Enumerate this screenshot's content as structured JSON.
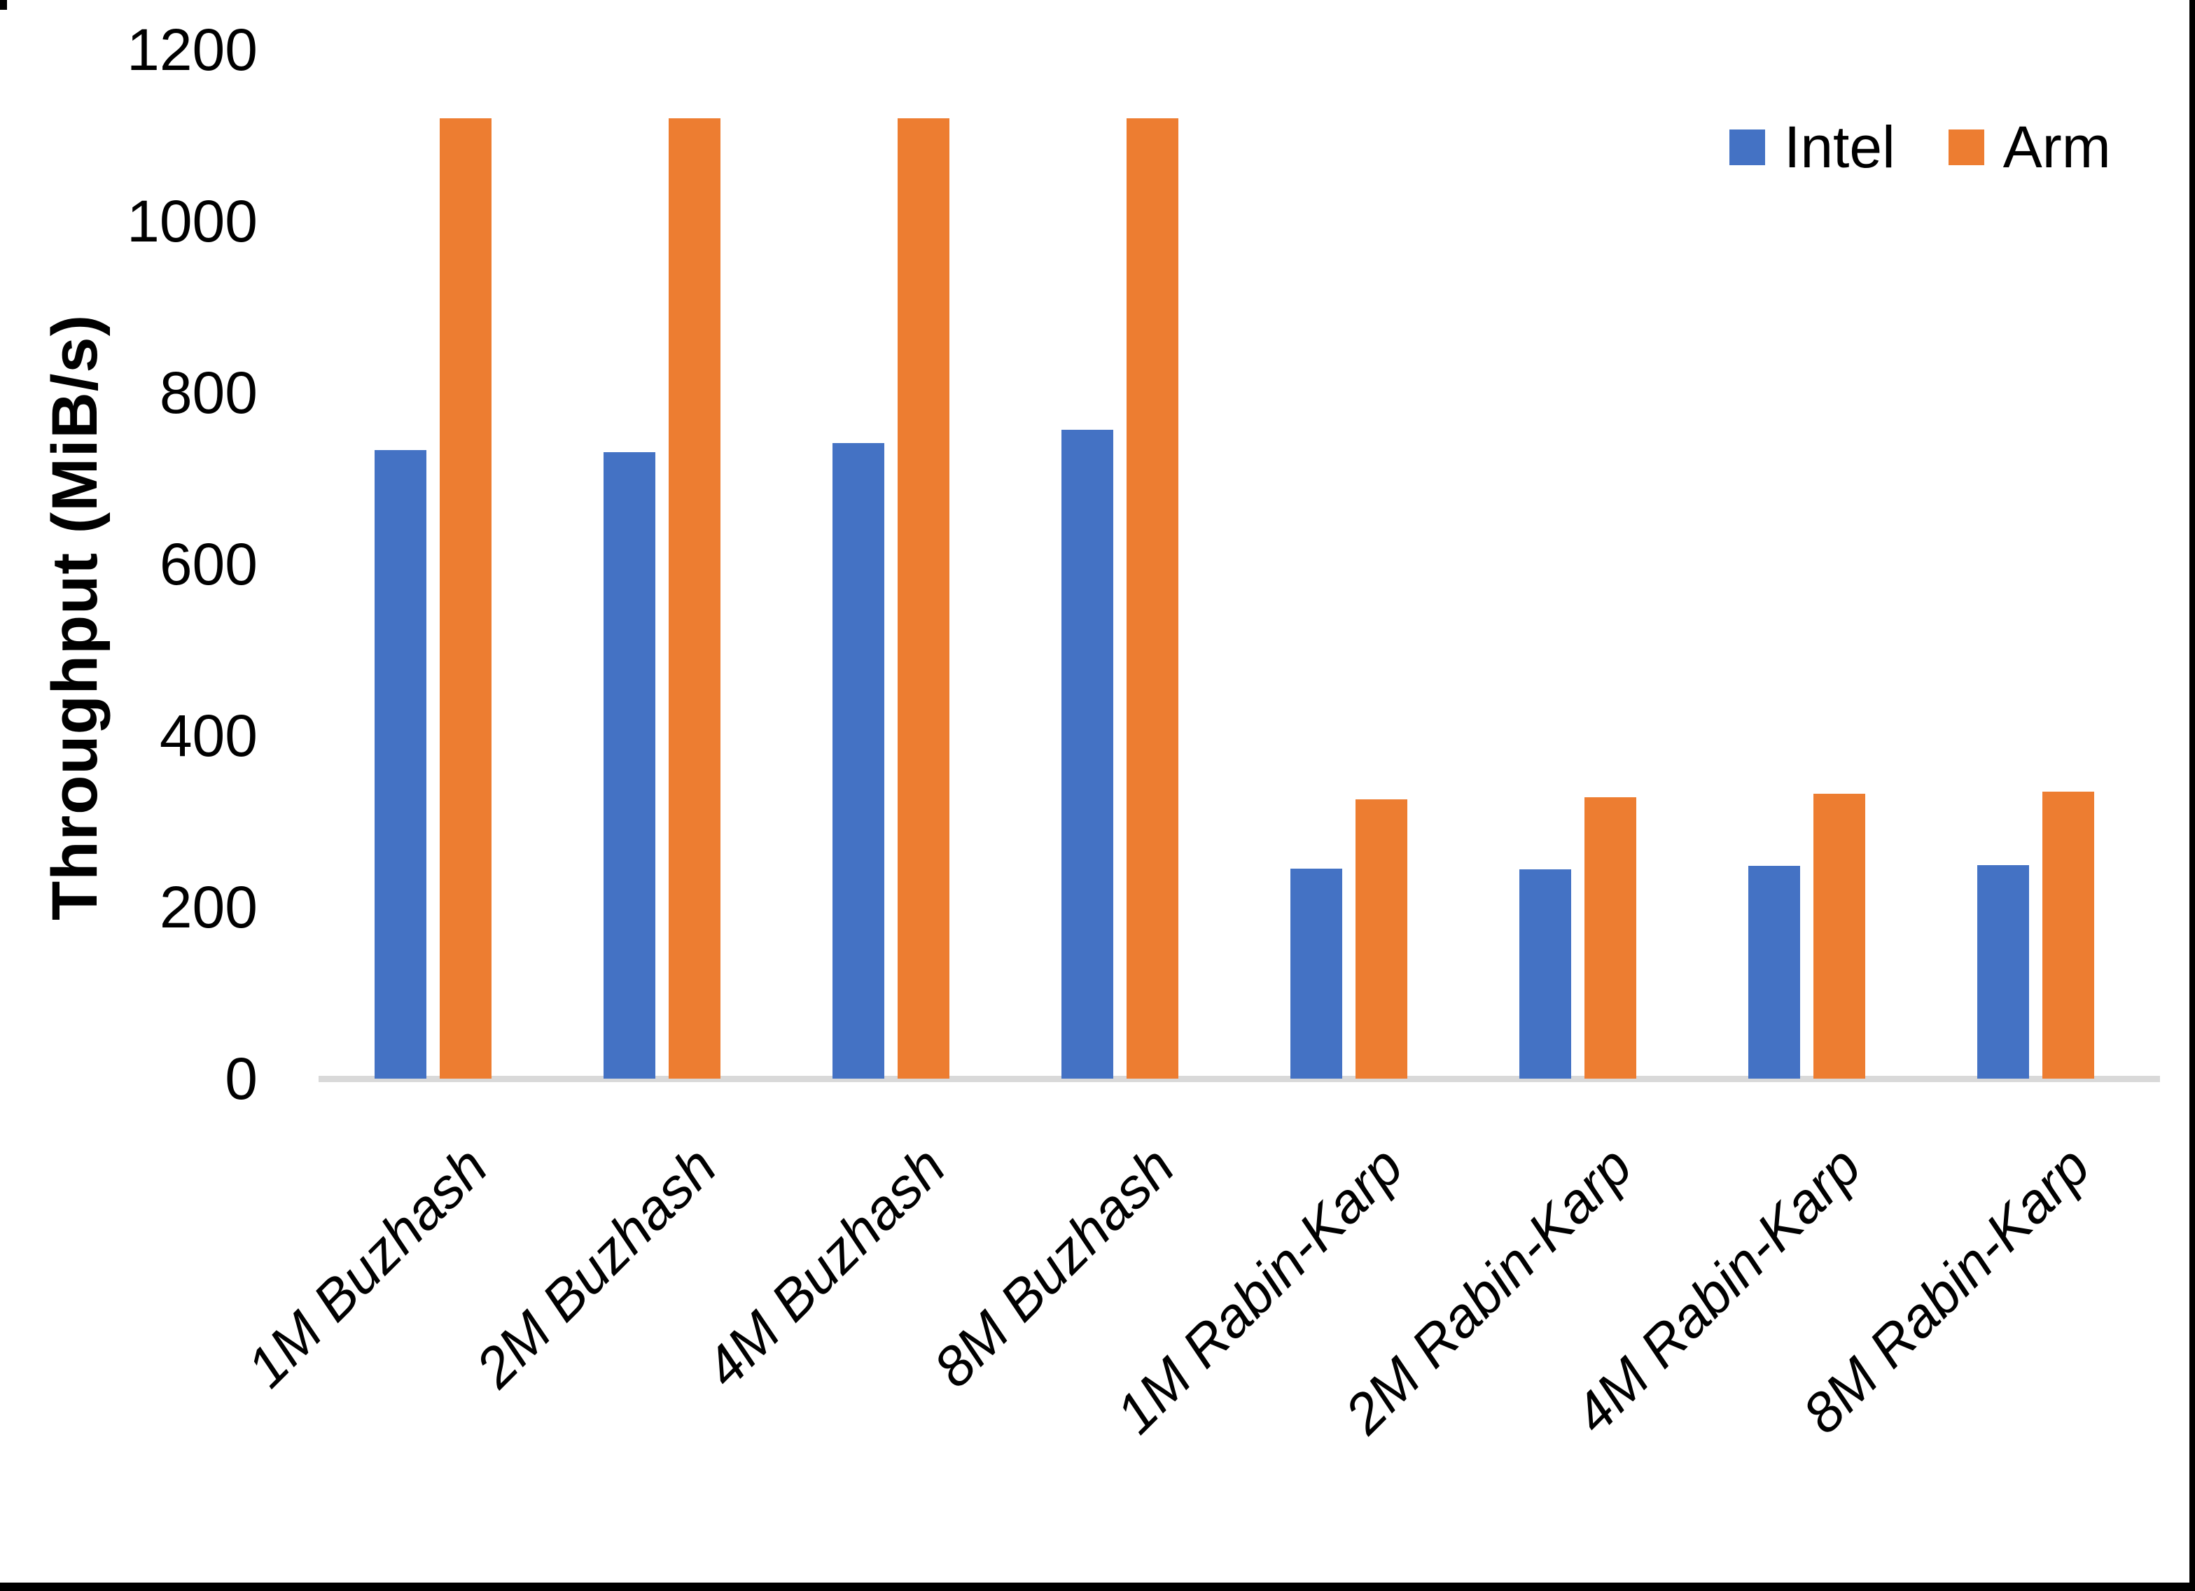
{
  "chart_data": {
    "type": "bar",
    "title": "",
    "xlabel": "",
    "ylabel": "Throughput (MiB/s)",
    "categories": [
      "1M Buzhash",
      "2M Buzhash",
      "4M Buzhash",
      "8M Buzhash",
      "1M Rabin-Karp",
      "2M Rabin-Karp",
      "4M Rabin-Karp",
      "8M Rabin-Karp"
    ],
    "series": [
      {
        "name": "Intel",
        "color": "#4472C4",
        "values": [
          733,
          731,
          741,
          757,
          245,
          244,
          248,
          249
        ]
      },
      {
        "name": "Arm",
        "color": "#ED7D31",
        "values": [
          1120,
          1120,
          1120,
          1120,
          326,
          328,
          332,
          335
        ]
      }
    ],
    "ylim": [
      0,
      1200
    ],
    "yticks": [
      0,
      200,
      400,
      600,
      800,
      1000,
      1200
    ],
    "grid": false,
    "legend_position": "top-right",
    "axis_line_color": "#D9D9D9",
    "text_color": "#000000",
    "background_color": "#FFFFFF"
  }
}
